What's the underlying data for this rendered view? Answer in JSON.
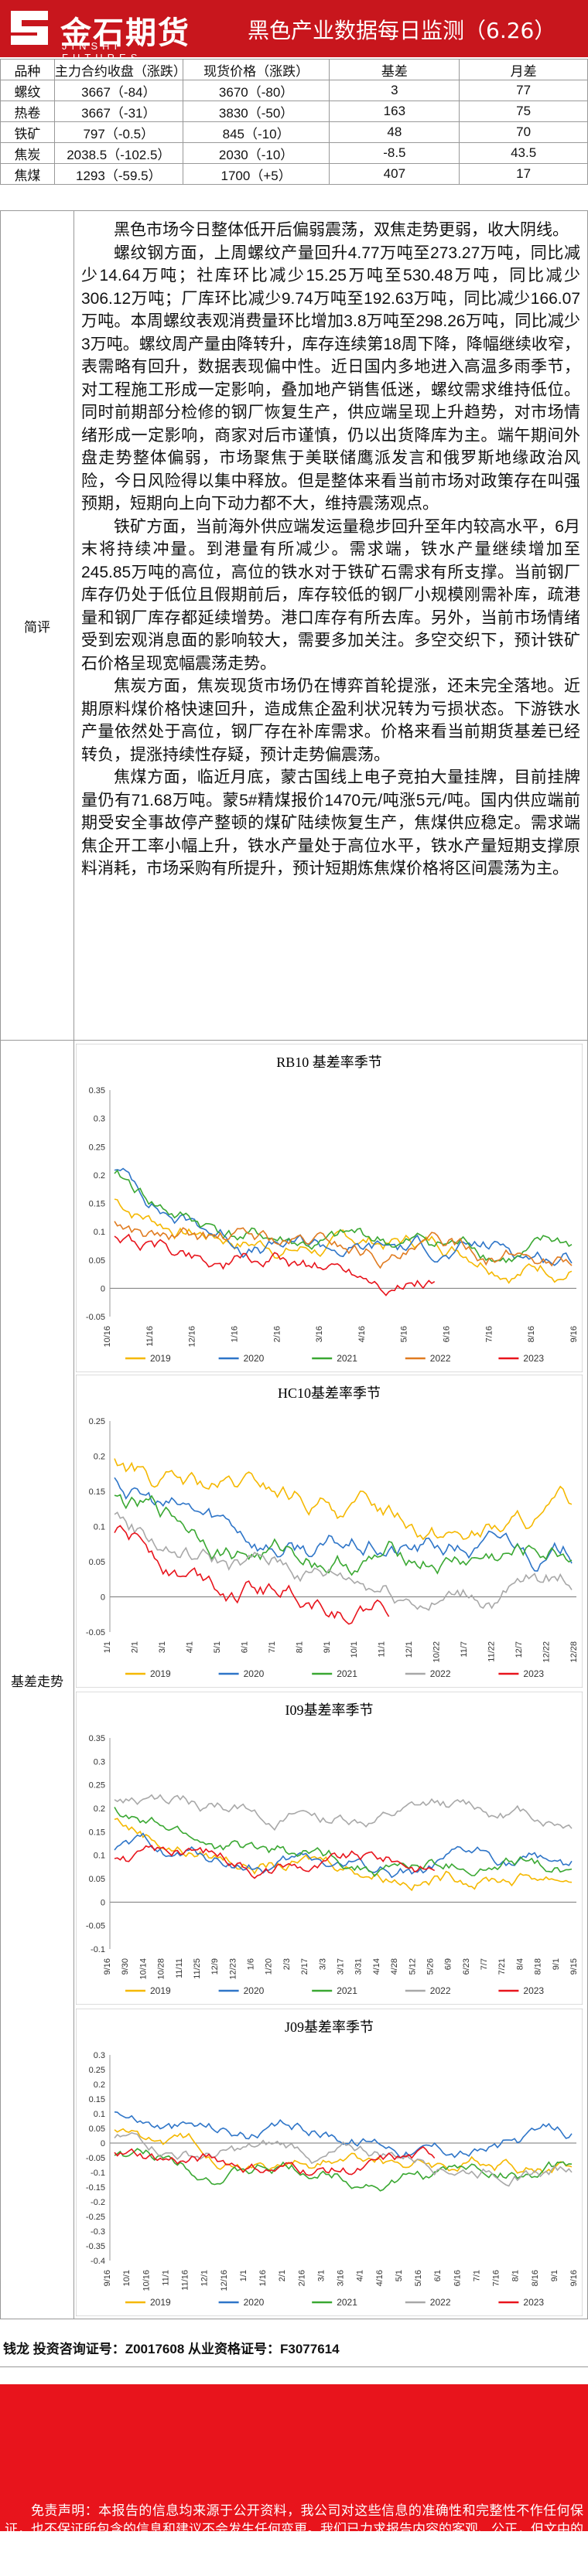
{
  "header": {
    "logo_cn": "金石期货",
    "logo_en": "JINSHI FUTURES",
    "title": "黑色产业数据每日监测（6.26）"
  },
  "table": {
    "headers": [
      "品种",
      "主力合约收盘（涨跌）",
      "现货价格（涨跌）",
      "基差",
      "月差"
    ],
    "rows": [
      [
        "螺纹",
        "3667（-84）",
        "3670（-80）",
        "3",
        "77"
      ],
      [
        "热卷",
        "3667（-31）",
        "3830（-50）",
        "163",
        "75"
      ],
      [
        "铁矿",
        "797（-0.5）",
        "845（-10）",
        "48",
        "70"
      ],
      [
        "焦炭",
        "2038.5（-102.5）",
        "2030（-10）",
        "-8.5",
        "43.5"
      ],
      [
        "焦煤",
        "1293（-59.5）",
        "1700（+5）",
        "407",
        "17"
      ]
    ]
  },
  "commentary": {
    "label": "简评",
    "paragraphs": [
      "黑色市场今日整体低开后偏弱震荡，双焦走势更弱，收大阴线。",
      "螺纹钢方面，上周螺纹产量回升4.77万吨至273.27万吨，同比减少14.64万吨；社库环比减少15.25万吨至530.48万吨，同比减少306.12万吨；厂库环比减少9.74万吨至192.63万吨，同比减少166.07万吨。本周螺纹表观消费量环比增加3.8万吨至298.26万吨，同比减少3万吨。螺纹周产量由降转升，库存连续第18周下降，降幅继续收窄，表需略有回升，数据表现偏中性。近日国内多地进入高温多雨季节，对工程施工形成一定影响，叠加地产销售低迷，螺纹需求维持低位。同时前期部分检修的钢厂恢复生产，供应端呈现上升趋势，对市场情绪形成一定影响，商家对后市谨慎，仍以出货降库为主。端午期间外盘走势整体偏弱，市场聚焦于美联储鹰派发言和俄罗斯地缘政治风险，今日风险得以集中释放。但是整体来看当前市场对政策存在叫强预期，短期向上向下动力都不大，维持震荡观点。",
      "铁矿方面，当前海外供应端发运量稳步回升至年内较高水平，6月末将持续冲量。到港量有所减少。需求端，铁水产量继续增加至245.85万吨的高位，高位的铁水对于铁矿石需求有所支撑。当前钢厂库存仍处于低位且假期前后，库存较低的钢厂小规模刚需补库，疏港量和钢厂库存都延续增势。港口库存有所去库。另外，当前市场情绪受到宏观消息面的影响较大，需要多加关注。多空交织下，预计铁矿石价格呈现宽幅震荡走势。",
      "焦炭方面，焦炭现货市场仍在博弈首轮提涨，还未完全落地。近期原料煤价格快速回升，造成焦企盈利状况转为亏损状态。下游铁水产量依然处于高位，钢厂存在补库需求。价格来看当前期货基差已经转负，提涨持续性存疑，预计走势偏震荡。",
      "焦煤方面，临近月底，蒙古国线上电子竞拍大量挂牌，目前挂牌量仍有71.68万吨。蒙5#精煤报价1470元/吨涨5元/吨。国内供应端前期受安全事故停产整顿的煤矿陆续恢复生产，焦煤供应稳定。需求端焦企开工率小幅上升，铁水产量处于高位水平，铁水产量短期支撑原料消耗，市场采购有所提升，预计短期炼焦煤价格将区间震荡为主。"
    ]
  },
  "charts_label": "基差走势",
  "charts": [
    {
      "title": "RB10 基差率季节",
      "yticks": [
        "0.35",
        "0.3",
        "0.25",
        "0.2",
        "0.15",
        "0.1",
        "0.05",
        "0",
        "-0.05"
      ],
      "xticks": [
        "10/16",
        "11/16",
        "12/16",
        "1/16",
        "2/16",
        "3/16",
        "4/16",
        "5/16",
        "6/16",
        "7/16",
        "8/16",
        "9/16"
      ],
      "legend": [
        "2019",
        "2020",
        "2021",
        "2022",
        "2023"
      ]
    },
    {
      "title": "HC10基差率季节",
      "yticks": [
        "0.25",
        "0.2",
        "0.15",
        "0.1",
        "0.05",
        "0",
        "-0.05"
      ],
      "xticks": [
        "1/1",
        "2/1",
        "3/1",
        "4/1",
        "5/1",
        "6/1",
        "7/1",
        "8/1",
        "9/1",
        "10/1",
        "11/1",
        "12/1",
        "10/22",
        "11/7",
        "11/22",
        "12/7",
        "12/22",
        "12/28"
      ],
      "legend": [
        "2019",
        "2020",
        "2021",
        "2022",
        "2023"
      ]
    },
    {
      "title": "I09基差率季节",
      "yticks": [
        "0.35",
        "0.3",
        "0.25",
        "0.2",
        "0.15",
        "0.1",
        "0.05",
        "0",
        "-0.05",
        "-0.1"
      ],
      "xticks": [
        "9/16",
        "9/30",
        "10/14",
        "10/28",
        "11/11",
        "11/25",
        "12/9",
        "12/23",
        "1/6",
        "1/20",
        "2/3",
        "2/17",
        "3/3",
        "3/17",
        "3/31",
        "4/14",
        "4/28",
        "5/12",
        "5/26",
        "6/9",
        "6/23",
        "7/7",
        "7/21",
        "8/4",
        "8/18",
        "9/1",
        "9/15"
      ],
      "legend": [
        "2019",
        "2020",
        "2021",
        "2022",
        "2023"
      ]
    },
    {
      "title": "J09基差率季节",
      "yticks": [
        "0.3",
        "0.25",
        "0.2",
        "0.15",
        "0.1",
        "0.05",
        "0",
        "-0.05",
        "-0.1",
        "-0.15",
        "-0.2",
        "-0.25",
        "-0.3",
        "-0.35",
        "-0.4"
      ],
      "xticks": [
        "9/16",
        "10/1",
        "10/16",
        "11/1",
        "11/16",
        "12/1",
        "12/16",
        "1/1",
        "1/16",
        "2/1",
        "2/16",
        "3/1",
        "3/16",
        "4/1",
        "4/16",
        "5/1",
        "5/16",
        "6/1",
        "6/16",
        "7/1",
        "7/16",
        "8/1",
        "8/16",
        "9/1",
        "9/16"
      ],
      "legend": [
        "2019",
        "2020",
        "2021",
        "2022",
        "2023"
      ]
    }
  ],
  "series_colors": {
    "2019": "#f5b800",
    "2020": "#2e75c8",
    "2021": "#3aa832",
    "2022": "#a8a8a8",
    "2023": "#e8141c"
  },
  "chart_colors_rb": {
    "2019": "#f5b800",
    "2020": "#2e75c8",
    "2021": "#3aa832",
    "2022": "#e07b20",
    "2023": "#e8141c"
  },
  "analyst": "钱龙 投资咨询证号：Z0017608 从业资格证号：F3077614",
  "disclaimer": "免责声明：本报告的信息均来源于公开资料，我公司对这些信息的准确性和完整性不作任何保证，也不保证所包含的信息和建议不会发生任何变更。我们已力求报告内容的客观、公正，但文中的观点、结论和建议仅供参考，报告中的信息或意见并不构成所述品种的操作依据，投资者据此做出的任何投资决策与本公司和作者无关。"
}
